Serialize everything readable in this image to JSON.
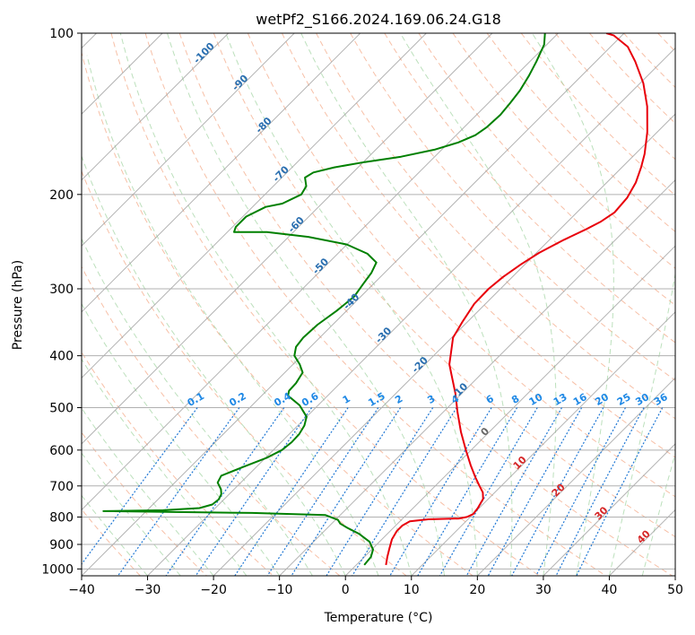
{
  "chart_data": {
    "type": "line",
    "title": "wetPf2_S166.2024.169.06.24.G18",
    "xlabel": "Temperature (°C)",
    "ylabel": "Pressure (hPa)",
    "xlim": [
      -40,
      50
    ],
    "ylim": [
      1030,
      100
    ],
    "y_scale": "log",
    "grid": true,
    "x_ticks": [
      -40,
      -30,
      -20,
      -10,
      0,
      10,
      20,
      30,
      40,
      50
    ],
    "y_ticks": [
      100,
      200,
      300,
      400,
      500,
      600,
      700,
      800,
      900,
      1000
    ],
    "skew_degrees": 45,
    "series": [
      {
        "color": "#e8000b",
        "points": [
          [
            4.5,
            983
          ],
          [
            3.5,
            950
          ],
          [
            2.5,
            915
          ],
          [
            1.5,
            880
          ],
          [
            1.0,
            850
          ],
          [
            1.0,
            830
          ],
          [
            1.5,
            815
          ],
          [
            4.0,
            808
          ],
          [
            8.5,
            805
          ],
          [
            9.5,
            800
          ],
          [
            10.0,
            790
          ],
          [
            9.8,
            770
          ],
          [
            9.2,
            740
          ],
          [
            8.2,
            720
          ],
          [
            6.7,
            700
          ],
          [
            4.8,
            675
          ],
          [
            2.2,
            640
          ],
          [
            -0.8,
            600
          ],
          [
            -4.3,
            555
          ],
          [
            -7.8,
            510
          ],
          [
            -11.0,
            470
          ],
          [
            -14.3,
            435
          ],
          [
            -16.3,
            415
          ],
          [
            -17.8,
            395
          ],
          [
            -19.8,
            370
          ],
          [
            -20.8,
            345
          ],
          [
            -21.7,
            320
          ],
          [
            -21.8,
            300
          ],
          [
            -21.4,
            285
          ],
          [
            -20.6,
            270
          ],
          [
            -19.6,
            257
          ],
          [
            -17.8,
            243
          ],
          [
            -16.0,
            232
          ],
          [
            -15.0,
            225
          ],
          [
            -14.3,
            216
          ],
          [
            -14.6,
            203
          ],
          [
            -15.6,
            190
          ],
          [
            -17.1,
            178
          ],
          [
            -18.6,
            168
          ],
          [
            -21.5,
            153
          ],
          [
            -25.4,
            137
          ],
          [
            -29.5,
            124
          ],
          [
            -34.0,
            113
          ],
          [
            -37.4,
            106
          ],
          [
            -41.2,
            101
          ],
          [
            -42.7,
            100
          ]
        ]
      },
      {
        "color": "#008000",
        "points": [
          [
            1.2,
            983
          ],
          [
            1.0,
            950
          ],
          [
            0.2,
            920
          ],
          [
            -1.5,
            890
          ],
          [
            -4.3,
            860
          ],
          [
            -7.0,
            838
          ],
          [
            -8.7,
            823
          ],
          [
            -9.6,
            810
          ],
          [
            -12.3,
            793
          ],
          [
            -23.7,
            786
          ],
          [
            -46.5,
            780
          ],
          [
            -37.6,
            777
          ],
          [
            -32.4,
            770
          ],
          [
            -31.0,
            758
          ],
          [
            -30.8,
            742
          ],
          [
            -31.2,
            725
          ],
          [
            -32.0,
            710
          ],
          [
            -33.5,
            690
          ],
          [
            -34.0,
            670
          ],
          [
            -32.0,
            645
          ],
          [
            -29.8,
            620
          ],
          [
            -28.7,
            600
          ],
          [
            -28.4,
            580
          ],
          [
            -28.5,
            560
          ],
          [
            -29.0,
            540
          ],
          [
            -30.0,
            520
          ],
          [
            -32.8,
            495
          ],
          [
            -36.0,
            475
          ],
          [
            -36.6,
            465
          ],
          [
            -36.7,
            450
          ],
          [
            -37.3,
            430
          ],
          [
            -39.0,
            415
          ],
          [
            -41.1,
            400
          ],
          [
            -42.2,
            385
          ],
          [
            -42.5,
            370
          ],
          [
            -42.3,
            350
          ],
          [
            -41.5,
            330
          ],
          [
            -41.0,
            310
          ],
          [
            -41.5,
            295
          ],
          [
            -42.0,
            280
          ],
          [
            -42.8,
            268
          ],
          [
            -45.5,
            258
          ],
          [
            -50.0,
            248
          ],
          [
            -57.0,
            240
          ],
          [
            -64.0,
            235
          ],
          [
            -69.0,
            235
          ],
          [
            -69.5,
            230
          ],
          [
            -69.5,
            220
          ],
          [
            -68.0,
            211
          ],
          [
            -66.0,
            208
          ],
          [
            -64.5,
            200
          ],
          [
            -65.0,
            193
          ],
          [
            -66.5,
            186
          ],
          [
            -66.0,
            182
          ],
          [
            -63.6,
            178
          ],
          [
            -59.8,
            174
          ],
          [
            -55.1,
            170
          ],
          [
            -51.1,
            165
          ],
          [
            -48.6,
            160
          ],
          [
            -47.1,
            155
          ],
          [
            -46.6,
            150
          ],
          [
            -46.4,
            142
          ],
          [
            -46.7,
            135
          ],
          [
            -47.1,
            128
          ],
          [
            -48.0,
            120
          ],
          [
            -49.0,
            113
          ],
          [
            -50.4,
            105
          ],
          [
            -52.0,
            100
          ]
        ]
      }
    ],
    "dry_adiabat_labels": [
      "-100",
      "-90",
      "-80",
      "-70",
      "-60",
      "-50",
      "-40",
      "-30",
      "-20",
      "-10",
      "0",
      "10",
      "20",
      "30",
      "40"
    ],
    "mixing_ratio_labels": [
      "0.1",
      "0.2",
      "0.4",
      "0.6",
      "1",
      "1.5",
      "2",
      "3",
      "4",
      "6",
      "8",
      "10",
      "13",
      "16",
      "20",
      "25",
      "30",
      "36"
    ]
  },
  "colors": {
    "temperature": "#e8000b",
    "dewpoint": "#008000",
    "dry_adiabat": "#f4a582",
    "moist_adiabat": "#9fd39f",
    "mixing_ratio": "#1f77d4",
    "isotherm": "#9a9a9a",
    "dry_label_cold": "#2a6fb0",
    "dry_label_warm": "#d62728",
    "mixing_label": "#1e88e5"
  }
}
